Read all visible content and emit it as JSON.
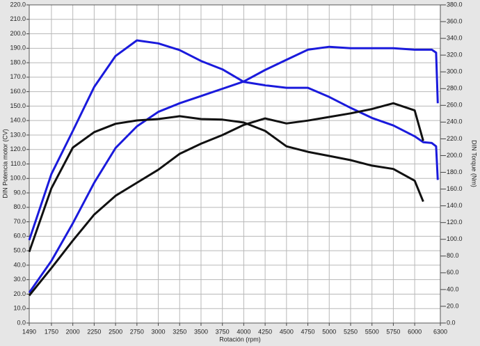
{
  "chart_data": {
    "type": "line",
    "x_label": "Rotación (rpm)",
    "y_label": "DIN Potencia motor (CV)",
    "y2_label": "DIN Torque (Nm)",
    "xlim": [
      1490,
      6300
    ],
    "xticks": [
      1490,
      1750,
      2000,
      2250,
      2500,
      2750,
      3000,
      3250,
      3500,
      3750,
      4000,
      4250,
      4500,
      4750,
      5000,
      5250,
      5500,
      5750,
      6000,
      6300
    ],
    "ylim": [
      0,
      220
    ],
    "yticks": [
      {
        "value": 0,
        "label": "0.0"
      },
      {
        "value": 10,
        "label": "10.0"
      },
      {
        "value": 20,
        "label": "20.0"
      },
      {
        "value": 30,
        "label": "30.0"
      },
      {
        "value": 40,
        "label": "40.0"
      },
      {
        "value": 50,
        "label": "50.0"
      },
      {
        "value": 60,
        "label": "60.0"
      },
      {
        "value": 70,
        "label": "70.0"
      },
      {
        "value": 80,
        "label": "80.0"
      },
      {
        "value": 90,
        "label": "90.0"
      },
      {
        "value": 100,
        "label": "100.0"
      },
      {
        "value": 110,
        "label": "110.0"
      },
      {
        "value": 120,
        "label": "120.0"
      },
      {
        "value": 130,
        "label": "130.0"
      },
      {
        "value": 140,
        "label": "140.0"
      },
      {
        "value": 150,
        "label": "150.0"
      },
      {
        "value": 160,
        "label": "160.0"
      },
      {
        "value": 170,
        "label": "170.0"
      },
      {
        "value": 180,
        "label": "180.0"
      },
      {
        "value": 190,
        "label": "190.0"
      },
      {
        "value": 200,
        "label": "200.0"
      },
      {
        "value": 210,
        "label": "210.0"
      },
      {
        "value": 220,
        "label": "220.0"
      }
    ],
    "y2lim": [
      0,
      380
    ],
    "y2ticks": [
      {
        "value": 0,
        "label": "0.0"
      },
      {
        "value": 20,
        "label": "20.0"
      },
      {
        "value": 40,
        "label": "40.0"
      },
      {
        "value": 60,
        "label": "60.0"
      },
      {
        "value": 80,
        "label": "80.0"
      },
      {
        "value": 100,
        "label": "100.0"
      },
      {
        "value": 120,
        "label": "120.0"
      },
      {
        "value": 140,
        "label": "140.0"
      },
      {
        "value": 160,
        "label": "160.0"
      },
      {
        "value": 180,
        "label": "180.0"
      },
      {
        "value": 200,
        "label": "200.0"
      },
      {
        "value": 220,
        "label": "220.0"
      },
      {
        "value": 240,
        "label": "240.0"
      },
      {
        "value": 260,
        "label": "260.0"
      },
      {
        "value": 280,
        "label": "280.0"
      },
      {
        "value": 300,
        "label": "300.0"
      },
      {
        "value": 320,
        "label": "320.0"
      },
      {
        "value": 340,
        "label": "340.0"
      },
      {
        "value": 360,
        "label": "360.0"
      },
      {
        "value": 380,
        "label": "380.0"
      }
    ],
    "grid": true,
    "series": [
      {
        "color": "#1a1adc",
        "axis": "y2",
        "x": [
          1490,
          1750,
          2000,
          2250,
          2500,
          2750,
          3000,
          3250,
          3500,
          3750,
          4000,
          4250,
          4500,
          4750,
          5000,
          5250,
          5500,
          5750,
          6000,
          6100,
          6200,
          6250,
          6270
        ],
        "values": [
          99,
          178,
          229.5,
          282,
          319,
          337.6,
          334,
          326,
          313,
          303,
          288,
          284,
          281,
          281,
          270,
          257,
          245,
          236,
          223,
          216,
          215,
          211,
          171
        ]
      },
      {
        "color": "#1a1adc",
        "x": [
          1490,
          1750,
          2000,
          2250,
          2500,
          2750,
          3000,
          3250,
          3500,
          3750,
          4000,
          4250,
          4500,
          4750,
          5000,
          5250,
          5500,
          5750,
          6000,
          6200,
          6250,
          6270
        ],
        "values": [
          21,
          43,
          69,
          97,
          121,
          136,
          146,
          152,
          157,
          162,
          167,
          175,
          182,
          189,
          191,
          190,
          190,
          190,
          189,
          189,
          187,
          152
        ]
      },
      {
        "color": "#111111",
        "axis": "y2",
        "x": [
          1490,
          1750,
          2000,
          2250,
          2500,
          2750,
          3000,
          3250,
          3500,
          3750,
          4000,
          4250,
          4500,
          4750,
          5000,
          5250,
          5500,
          5750,
          6000,
          6100
        ],
        "values": [
          85,
          161,
          209.5,
          228,
          238,
          242,
          243.6,
          247,
          243.6,
          243,
          239.5,
          229.5,
          211,
          204.5,
          199.6,
          194.6,
          188,
          184,
          170,
          145
        ]
      },
      {
        "color": "#111111",
        "x": [
          1490,
          1750,
          2000,
          2250,
          2500,
          2750,
          3000,
          3250,
          3500,
          3750,
          4000,
          4250,
          4500,
          4750,
          5000,
          5250,
          5500,
          5750,
          6000,
          6100
        ],
        "values": [
          19,
          38,
          57,
          75,
          88,
          97,
          106,
          117,
          124,
          130,
          137,
          141.5,
          138,
          140,
          142.5,
          145,
          148,
          152,
          147,
          126
        ]
      }
    ]
  }
}
